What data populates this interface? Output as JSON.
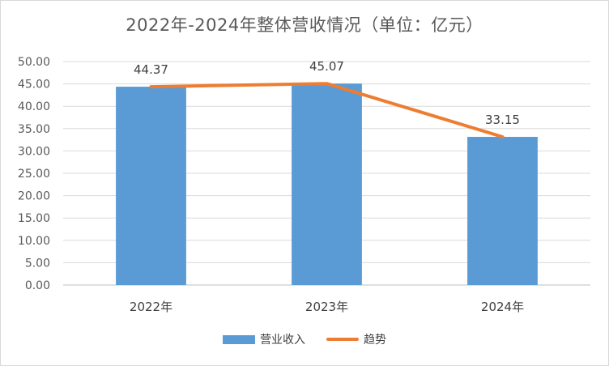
{
  "chart_data": {
    "type": "bar",
    "title": "2022年-2024年整体营收情况（单位：亿元）",
    "categories": [
      "2022年",
      "2023年",
      "2024年"
    ],
    "series": [
      {
        "name": "营业收入",
        "type": "bar",
        "values": [
          44.37,
          45.07,
          33.15
        ],
        "color": "#5b9bd5"
      },
      {
        "name": "趋势",
        "type": "line",
        "values": [
          44.37,
          45.07,
          33.15
        ],
        "color": "#ed7d31"
      }
    ],
    "data_labels": [
      "44.37",
      "45.07",
      "33.15"
    ],
    "ylim": [
      0,
      50
    ],
    "y_ticks": [
      "0.00",
      "5.00",
      "10.00",
      "15.00",
      "20.00",
      "25.00",
      "30.00",
      "35.00",
      "40.00",
      "45.00",
      "50.00"
    ],
    "xlabel": "",
    "ylabel": "",
    "grid": true,
    "legend_position": "bottom"
  }
}
